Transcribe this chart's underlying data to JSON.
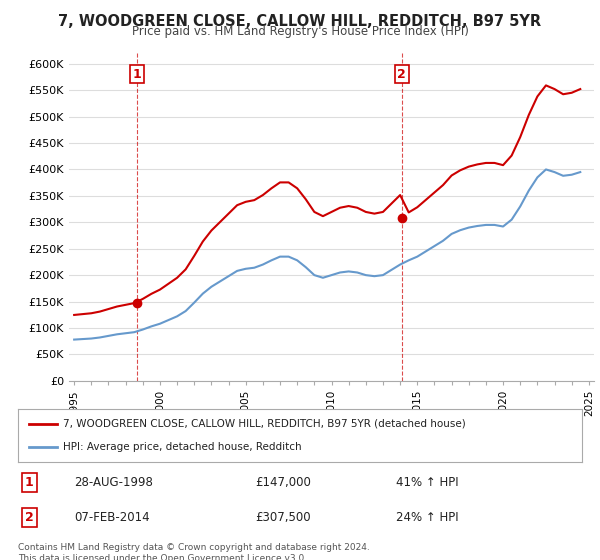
{
  "title": "7, WOODGREEN CLOSE, CALLOW HILL, REDDITCH, B97 5YR",
  "subtitle": "Price paid vs. HM Land Registry's House Price Index (HPI)",
  "ylabel_ticks": [
    "£0",
    "£50K",
    "£100K",
    "£150K",
    "£200K",
    "£250K",
    "£300K",
    "£350K",
    "£400K",
    "£450K",
    "£500K",
    "£550K",
    "£600K"
  ],
  "ytick_values": [
    0,
    50000,
    100000,
    150000,
    200000,
    250000,
    300000,
    350000,
    400000,
    450000,
    500000,
    550000,
    600000
  ],
  "ylim": [
    0,
    620000
  ],
  "sale1": {
    "date_num": 1998.65,
    "price": 147000,
    "label": "1"
  },
  "sale2": {
    "date_num": 2014.1,
    "price": 307500,
    "label": "2"
  },
  "legend_line1": "7, WOODGREEN CLOSE, CALLOW HILL, REDDITCH, B97 5YR (detached house)",
  "legend_line2": "HPI: Average price, detached house, Redditch",
  "table_row1": [
    "1",
    "28-AUG-1998",
    "£147,000",
    "41% ↑ HPI"
  ],
  "table_row2": [
    "2",
    "07-FEB-2014",
    "£307,500",
    "24% ↑ HPI"
  ],
  "footer": "Contains HM Land Registry data © Crown copyright and database right 2024.\nThis data is licensed under the Open Government Licence v3.0.",
  "house_color": "#cc0000",
  "hpi_color": "#6699cc",
  "vline_color": "#cc0000",
  "bg_color": "#ffffff",
  "plot_bg": "#ffffff",
  "grid_color": "#dddddd"
}
